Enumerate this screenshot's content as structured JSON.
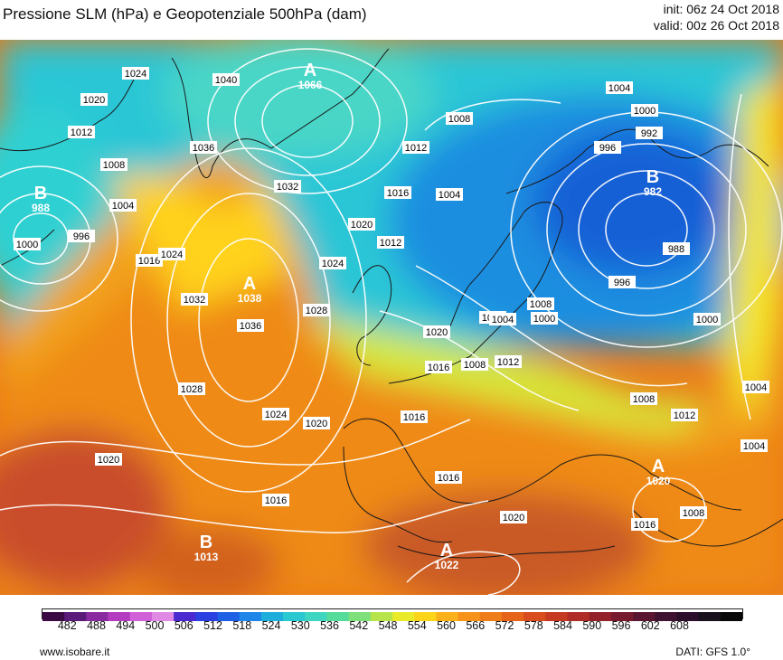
{
  "header": {
    "title": "Pressione SLM (hPa) e Geopotenziale 500hPa (dam)",
    "init": "init: 06z 24 Oct 2018",
    "valid": "valid: 00z 26 Oct 2018"
  },
  "footer": {
    "site": "www.isobare.it",
    "source": "DATI: GFS 1.0°"
  },
  "colorbar": {
    "ticks": [
      "482",
      "488",
      "494",
      "500",
      "506",
      "512",
      "518",
      "524",
      "530",
      "536",
      "542",
      "548",
      "554",
      "560",
      "566",
      "572",
      "578",
      "584",
      "590",
      "596",
      "602",
      "608"
    ]
  },
  "map": {
    "pressure_centers": [
      {
        "type": "A",
        "value": "1066"
      },
      {
        "type": "B",
        "value": "988"
      },
      {
        "type": "A",
        "value": "1038"
      },
      {
        "type": "B",
        "value": "982"
      },
      {
        "type": "A",
        "value": "1020"
      },
      {
        "type": "B",
        "value": "1013"
      },
      {
        "type": "A",
        "value": "1022"
      }
    ],
    "isobar_labels": [
      "1020",
      "1024",
      "1012",
      "1008",
      "1004",
      "1000",
      "996",
      "1016",
      "1024",
      "1032",
      "1036",
      "1028",
      "1024",
      "1020",
      "1020",
      "1028",
      "1036",
      "1032",
      "1040",
      "1024",
      "1020",
      "1016",
      "1012",
      "1008",
      "1004",
      "1012",
      "1016",
      "1020",
      "1008",
      "1000",
      "992",
      "996",
      "988",
      "996",
      "1000",
      "1004",
      "1004",
      "1008",
      "1016",
      "1012",
      "1000",
      "1008",
      "1012",
      "1004",
      "1008",
      "1016",
      "1016",
      "1020",
      "1004",
      "1008",
      "1016"
    ]
  }
}
